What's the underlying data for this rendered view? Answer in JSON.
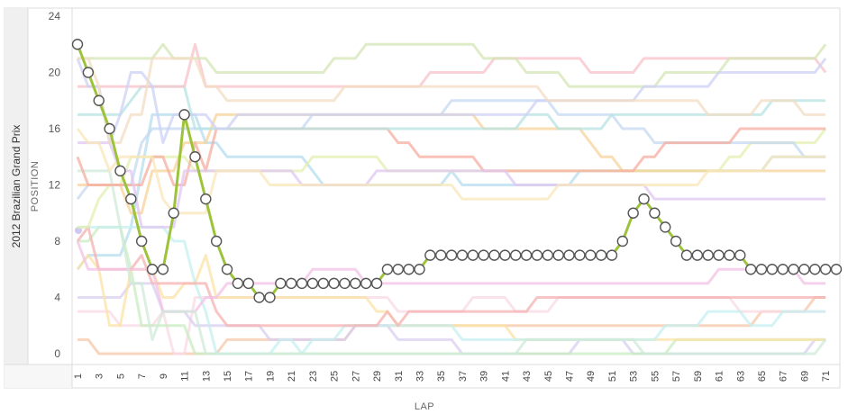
{
  "chart_data": {
    "type": "line",
    "title": "2012 Brazilian Grand Prix",
    "xlabel": "LAP",
    "ylabel": "POSITION",
    "ylim": [
      0,
      24
    ],
    "xlim": [
      1,
      72
    ],
    "y_ticks": [
      "0",
      "4",
      "8",
      "12",
      "16",
      "20",
      "24"
    ],
    "x_ticks": [
      "1",
      "3",
      "5",
      "7",
      "9",
      "11",
      "13",
      "15",
      "17",
      "19",
      "21",
      "23",
      "25",
      "27",
      "29",
      "31",
      "33",
      "35",
      "37",
      "39",
      "41",
      "43",
      "45",
      "47",
      "49",
      "51",
      "53",
      "55",
      "57",
      "59",
      "61",
      "63",
      "65",
      "67",
      "69",
      "71"
    ],
    "grid": "none",
    "highlight_color": "#9cc33a",
    "series": [
      {
        "x": [
          1,
          2,
          3,
          4,
          5,
          6,
          7,
          8,
          9,
          10,
          11,
          12,
          13,
          14,
          15,
          16,
          17,
          18,
          19,
          20,
          21,
          22,
          23,
          24,
          25,
          26,
          27,
          28,
          29,
          30,
          31,
          32,
          33,
          34,
          35,
          36,
          37,
          38,
          39,
          40,
          41,
          42,
          43,
          44,
          45,
          46,
          47,
          48,
          49,
          50,
          51,
          52,
          53,
          54,
          55,
          56,
          57,
          58,
          59,
          60,
          61,
          62,
          63,
          64,
          65,
          66,
          67,
          68,
          69,
          70,
          71,
          72
        ],
        "values": [
          22,
          20,
          18,
          16,
          13,
          11,
          8,
          6,
          6,
          10,
          17,
          14,
          11,
          8,
          6,
          5,
          5,
          4,
          4,
          5,
          5,
          5,
          5,
          5,
          5,
          5,
          5,
          5,
          5,
          6,
          6,
          6,
          6,
          7,
          7,
          7,
          7,
          7,
          7,
          7,
          7,
          7,
          7,
          7,
          7,
          7,
          7,
          7,
          7,
          7,
          7,
          8,
          10,
          11,
          10,
          9,
          8,
          7,
          7,
          7,
          7,
          7,
          7,
          6,
          6,
          6,
          6,
          6,
          6,
          6,
          6,
          6
        ]
      }
    ],
    "background_series_colors": [
      "#f6c7a8",
      "#b5dcef",
      "#f9d9e6",
      "#d9cdf0",
      "#c8ecc0",
      "#fbe3a6",
      "#c6eff0",
      "#f5b2b2",
      "#e3efb0",
      "#f3c2e6",
      "#c4d8f2",
      "#f7d39a",
      "#cfe9da",
      "#f5ada0",
      "#e0c7f2",
      "#fae7b9",
      "#b8e3e2",
      "#f8c2c9",
      "#d4e6b5",
      "#cdd2f5",
      "#f3dcc3"
    ]
  }
}
